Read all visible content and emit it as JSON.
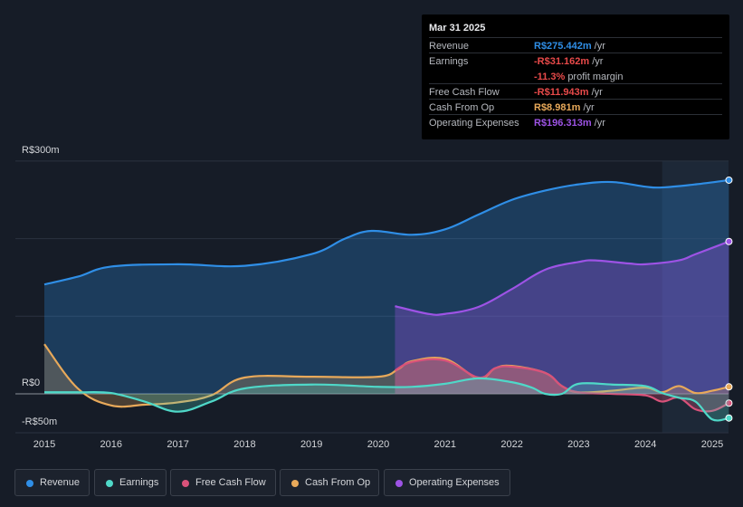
{
  "chart_data": {
    "type": "area",
    "title": "",
    "ylabel": "",
    "xlabel": "",
    "y_unit": "R$ millions",
    "ylim": [
      -50,
      300
    ],
    "y_tick_labels": [
      {
        "value": 300,
        "label": "R$300m"
      },
      {
        "value": 0,
        "label": "R$0"
      },
      {
        "value": -50,
        "label": "-R$50m"
      }
    ],
    "gridlines": [
      300,
      200,
      100,
      0
    ],
    "x_ticks": [
      "2015",
      "2016",
      "2017",
      "2018",
      "2019",
      "2020",
      "2021",
      "2022",
      "2023",
      "2024",
      "2025"
    ],
    "highlight_region": {
      "from": 2024.25,
      "to": 2025.25
    },
    "series": [
      {
        "name": "Revenue",
        "color": "#2f8ee6",
        "points": [
          [
            2015,
            141
          ],
          [
            2015.5,
            151
          ],
          [
            2016,
            164
          ],
          [
            2017,
            167
          ],
          [
            2018,
            165
          ],
          [
            2019,
            180
          ],
          [
            2019.5,
            200
          ],
          [
            2019.9,
            210
          ],
          [
            2020.5,
            205
          ],
          [
            2021,
            212
          ],
          [
            2021.5,
            231
          ],
          [
            2022,
            250
          ],
          [
            2022.5,
            262
          ],
          [
            2023,
            270
          ],
          [
            2023.5,
            273
          ],
          [
            2024,
            267
          ],
          [
            2024.25,
            266
          ],
          [
            2024.75,
            270
          ],
          [
            2025.25,
            275.442
          ]
        ]
      },
      {
        "name": "Operating Expenses",
        "color": "#9d53e5",
        "points": [
          [
            2020.25,
            113
          ],
          [
            2020.75,
            103
          ],
          [
            2021,
            103
          ],
          [
            2021.5,
            112
          ],
          [
            2022,
            135
          ],
          [
            2022.5,
            160
          ],
          [
            2023,
            170
          ],
          [
            2023.25,
            172
          ],
          [
            2023.75,
            168
          ],
          [
            2024,
            167
          ],
          [
            2024.5,
            172
          ],
          [
            2024.75,
            180
          ],
          [
            2025.25,
            196.313
          ]
        ]
      },
      {
        "name": "Cash From Op",
        "color": "#e8a95a",
        "points": [
          [
            2015,
            64
          ],
          [
            2015.5,
            7
          ],
          [
            2016,
            -15
          ],
          [
            2016.5,
            -14
          ],
          [
            2017,
            -11
          ],
          [
            2017.5,
            -2
          ],
          [
            2018,
            21
          ],
          [
            2019,
            22
          ],
          [
            2020,
            22
          ],
          [
            2020.3,
            32
          ],
          [
            2020.5,
            42
          ],
          [
            2021,
            45
          ],
          [
            2021.5,
            20
          ],
          [
            2021.75,
            33
          ],
          [
            2022,
            36
          ],
          [
            2022.5,
            27
          ],
          [
            2022.75,
            10
          ],
          [
            2023,
            2
          ],
          [
            2023.5,
            4
          ],
          [
            2024,
            8
          ],
          [
            2024.25,
            2
          ],
          [
            2024.5,
            10
          ],
          [
            2024.75,
            1
          ],
          [
            2025,
            4
          ],
          [
            2025.25,
            8.981
          ]
        ]
      },
      {
        "name": "Free Cash Flow",
        "color": "#d9527a",
        "points": [
          [
            2020.25,
            30
          ],
          [
            2020.5,
            41
          ],
          [
            2021,
            43
          ],
          [
            2021.5,
            21
          ],
          [
            2021.75,
            33
          ],
          [
            2022,
            35
          ],
          [
            2022.5,
            27
          ],
          [
            2022.75,
            10
          ],
          [
            2023,
            2
          ],
          [
            2023.5,
            0
          ],
          [
            2024,
            -2
          ],
          [
            2024.25,
            -10
          ],
          [
            2024.5,
            -5
          ],
          [
            2024.75,
            -20
          ],
          [
            2025,
            -22
          ],
          [
            2025.25,
            -11.943
          ]
        ]
      },
      {
        "name": "Earnings",
        "color": "#4fd8c8",
        "points": [
          [
            2015,
            2
          ],
          [
            2015.5,
            2
          ],
          [
            2016,
            1
          ],
          [
            2016.5,
            -10
          ],
          [
            2017,
            -23
          ],
          [
            2017.5,
            -10
          ],
          [
            2018,
            7
          ],
          [
            2019,
            12
          ],
          [
            2020,
            9
          ],
          [
            2020.5,
            9
          ],
          [
            2021,
            13
          ],
          [
            2021.5,
            20
          ],
          [
            2022,
            15
          ],
          [
            2022.3,
            8
          ],
          [
            2022.5,
            0
          ],
          [
            2022.75,
            0
          ],
          [
            2023,
            13
          ],
          [
            2023.5,
            12
          ],
          [
            2024,
            10
          ],
          [
            2024.25,
            1
          ],
          [
            2024.5,
            -5
          ],
          [
            2024.75,
            -10
          ],
          [
            2025,
            -33
          ],
          [
            2025.25,
            -31.162
          ]
        ]
      }
    ]
  },
  "tooltip": {
    "date": "Mar 31 2025",
    "rows": [
      {
        "label": "Revenue",
        "value": "R$275.442m",
        "unit": "/yr",
        "color": "#2f8ee6"
      },
      {
        "label": "Earnings",
        "value": "-R$31.162m",
        "unit": "/yr",
        "color": "#e84a4a"
      },
      {
        "label": "Free Cash Flow",
        "value": "-R$11.943m",
        "unit": "/yr",
        "color": "#e84a4a"
      },
      {
        "label": "Cash From Op",
        "value": "R$8.981m",
        "unit": "/yr",
        "color": "#e8a95a"
      },
      {
        "label": "Operating Expenses",
        "value": "R$196.313m",
        "unit": "/yr",
        "color": "#9d53e5"
      }
    ],
    "profit_margin": {
      "value": "-11.3%",
      "text": "profit margin",
      "color": "#e84a4a"
    }
  },
  "legend": [
    {
      "label": "Revenue",
      "color": "#2f8ee6"
    },
    {
      "label": "Earnings",
      "color": "#4fd8c8"
    },
    {
      "label": "Free Cash Flow",
      "color": "#d9527a"
    },
    {
      "label": "Cash From Op",
      "color": "#e8a95a"
    },
    {
      "label": "Operating Expenses",
      "color": "#9d53e5"
    }
  ]
}
